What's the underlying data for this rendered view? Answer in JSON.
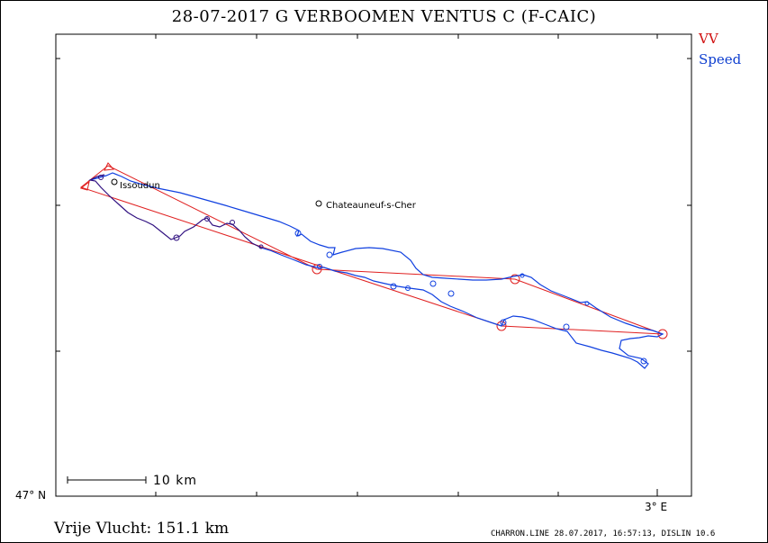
{
  "header": {
    "title": "28-07-2017   G VERBOOMEN   VENTUS C (F-CAIC)"
  },
  "legend": {
    "vv": "VV",
    "speed": "Speed"
  },
  "colors": {
    "task": "#e02020",
    "track": "#1040e0",
    "track_dark": "#301080",
    "frame": "#000000"
  },
  "map": {
    "latitude_label": "47° N",
    "longitude_label": "3° E",
    "scale_label": "10 km",
    "places": [
      {
        "name": "Issoudun"
      },
      {
        "name": "Chateauneuf-s-Cher"
      }
    ]
  },
  "footer": {
    "distance": "Vrije Vlucht:  151.1 km",
    "info": "CHARRON.LINE 28.07.2017, 16:57:13, DISLIN 10.6"
  }
}
